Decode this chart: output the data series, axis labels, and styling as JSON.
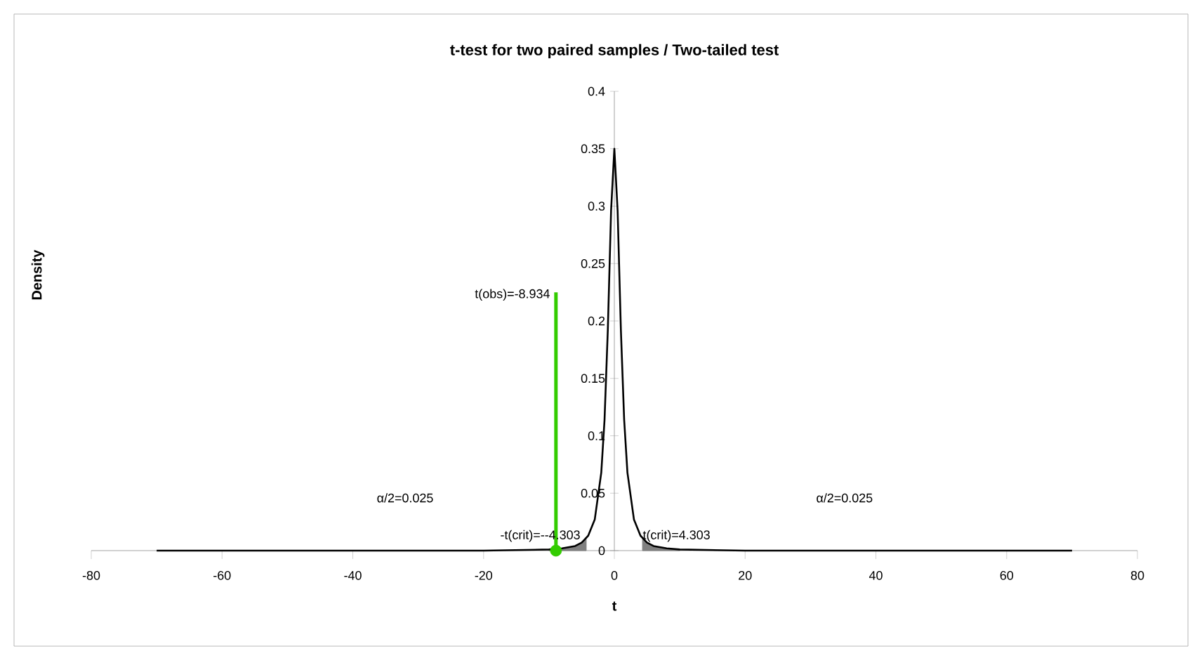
{
  "chart_data": {
    "type": "line",
    "title": "t-test for two paired samples / Two-tailed test",
    "xlabel": "t",
    "ylabel": "Density",
    "xlim": [
      -80,
      80
    ],
    "xticks": [
      -80,
      -60,
      -40,
      -20,
      0,
      20,
      40,
      60,
      80
    ],
    "ylim": [
      0,
      0.4
    ],
    "yticks": [
      0,
      0.05,
      0.1,
      0.15,
      0.2,
      0.25,
      0.3,
      0.35,
      0.4
    ],
    "grid": false,
    "marker": "none",
    "series": [
      {
        "type": "area",
        "color": "#808080",
        "x": [
          -10,
          -8,
          -6,
          -5,
          -4.303
        ],
        "values": [
          0.001,
          0.002,
          0.004,
          0.007,
          0.011
        ]
      },
      {
        "type": "area",
        "color": "#808080",
        "x": [
          4.303,
          5,
          6,
          8,
          10
        ],
        "values": [
          0.011,
          0.007,
          0.004,
          0.002,
          0.001
        ]
      },
      {
        "color": "#000000",
        "x": [
          -70,
          -40,
          -20,
          -10,
          -8,
          -6,
          -5,
          -4,
          -3,
          -2,
          -1.5,
          -1,
          -0.5,
          0,
          0.5,
          1,
          1.5,
          2,
          3,
          4,
          5,
          6,
          8,
          10,
          20,
          40,
          70
        ],
        "values": [
          0,
          0,
          0,
          0.001,
          0.002,
          0.004,
          0.007,
          0.013,
          0.027,
          0.068,
          0.114,
          0.192,
          0.296,
          0.35,
          0.296,
          0.192,
          0.114,
          0.068,
          0.027,
          0.013,
          0.007,
          0.004,
          0.002,
          0.001,
          0,
          0,
          0
        ]
      },
      {
        "color": "#33cc00",
        "x": [
          -8.934,
          -8.934
        ],
        "values": [
          0,
          0.225
        ]
      },
      {
        "type": "scatter",
        "color": "#33cc00",
        "marker": "circle",
        "x": [
          -8.934
        ],
        "values": [
          0
        ]
      }
    ],
    "annotations": [
      {
        "text": "t(obs)=-8.934",
        "x": -8.934,
        "y": 0.215
      },
      {
        "text": "-t(crit)=--4.303",
        "x": -4.303,
        "y": 0.005
      },
      {
        "text": "t(crit)=4.303",
        "x": 4.303,
        "y": 0.005
      },
      "α/2=0.025",
      "α/2=0.025"
    ]
  }
}
